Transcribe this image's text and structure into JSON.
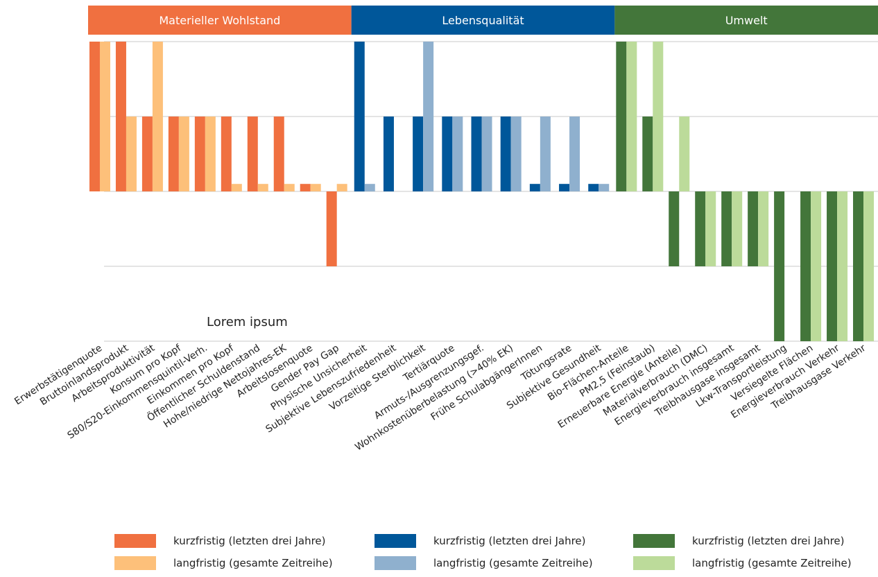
{
  "chart_data": {
    "type": "bar",
    "annotation": "Lorem ipsum",
    "ylim": [
      -2,
      2
    ],
    "yticks": [
      -2,
      -1,
      0,
      1,
      2
    ],
    "grid": true,
    "groups": [
      {
        "name": "Materieller Wohlstand",
        "color": "#f07040",
        "categories": [
          "Erwerbstätigenquote",
          "Bruttoinlandsprodukt",
          "Arbeitsproduktivität",
          "Konsum pro Kopf",
          "S80/S20-Einkommensquintil-Verh.",
          "Einkommen pro Kopf",
          "Öffentlicher Schuldenstand",
          "Hohe/niedrige Nettojahres-EK",
          "Arbeitslosenquote",
          "Gender Pay Gap"
        ],
        "series": [
          {
            "name": "kurzfristig (letzten drei Jahre)",
            "color": "#f07040",
            "values": [
              2,
              2,
              1,
              1,
              1,
              1,
              1,
              1,
              0.1,
              -1
            ]
          },
          {
            "name": "langfristig (gesamte Zeitreihe)",
            "color": "#fdc07a",
            "values": [
              2,
              1,
              2,
              1,
              1,
              0.1,
              0.1,
              0.1,
              0.1,
              0.1
            ]
          }
        ]
      },
      {
        "name": "Lebensqualität",
        "color": "#00579a",
        "categories": [
          "Physische Unsicherheit",
          "Subjektive Lebenszufriedenheit",
          "Vorzeitige Sterblichkeit",
          "Tertiärquote",
          "Armuts-/Ausgrenzungsgef.",
          "Wohnkostenüberbelastung (>40% EK)",
          "Frühe SchulabgängerInnen",
          "Tötungsrate",
          "Subjektive Gesundheit"
        ],
        "series": [
          {
            "name": "kurzfristig (letzten drei Jahre)",
            "color": "#00579a",
            "values": [
              2,
              1,
              1,
              1,
              1,
              1,
              0.1,
              0.1,
              0.1
            ]
          },
          {
            "name": "langfristig (gesamte Zeitreihe)",
            "color": "#8fb0ce",
            "values": [
              0.1,
              0,
              2,
              1,
              1,
              1,
              1,
              1,
              0.1
            ]
          }
        ]
      },
      {
        "name": "Umwelt",
        "color": "#43763a",
        "categories": [
          "Bio-Flächen-Anteile",
          "PM2,5 (Feinstaub)",
          "Erneuerbare Energie (Anteile)",
          "Materialverbrauch (DMC)",
          "Energieverbrauch insgesamt",
          "Treibhausgase insgesamt",
          "Lkw-Transportleistung",
          "Versiegelte Flächen",
          "Energieverbrauch Verkehr",
          "Treibhausgase Verkehr"
        ],
        "series": [
          {
            "name": "kurzfristig (letzten drei Jahre)",
            "color": "#43763a",
            "values": [
              2,
              1,
              -1,
              -1,
              -1,
              -1,
              -2,
              -2,
              -2,
              -2
            ]
          },
          {
            "name": "langfristig (gesamte Zeitreihe)",
            "color": "#bcdb9a",
            "values": [
              2,
              2,
              1,
              -1,
              -1,
              -1,
              0,
              -2,
              -2,
              -2
            ]
          }
        ]
      }
    ]
  }
}
